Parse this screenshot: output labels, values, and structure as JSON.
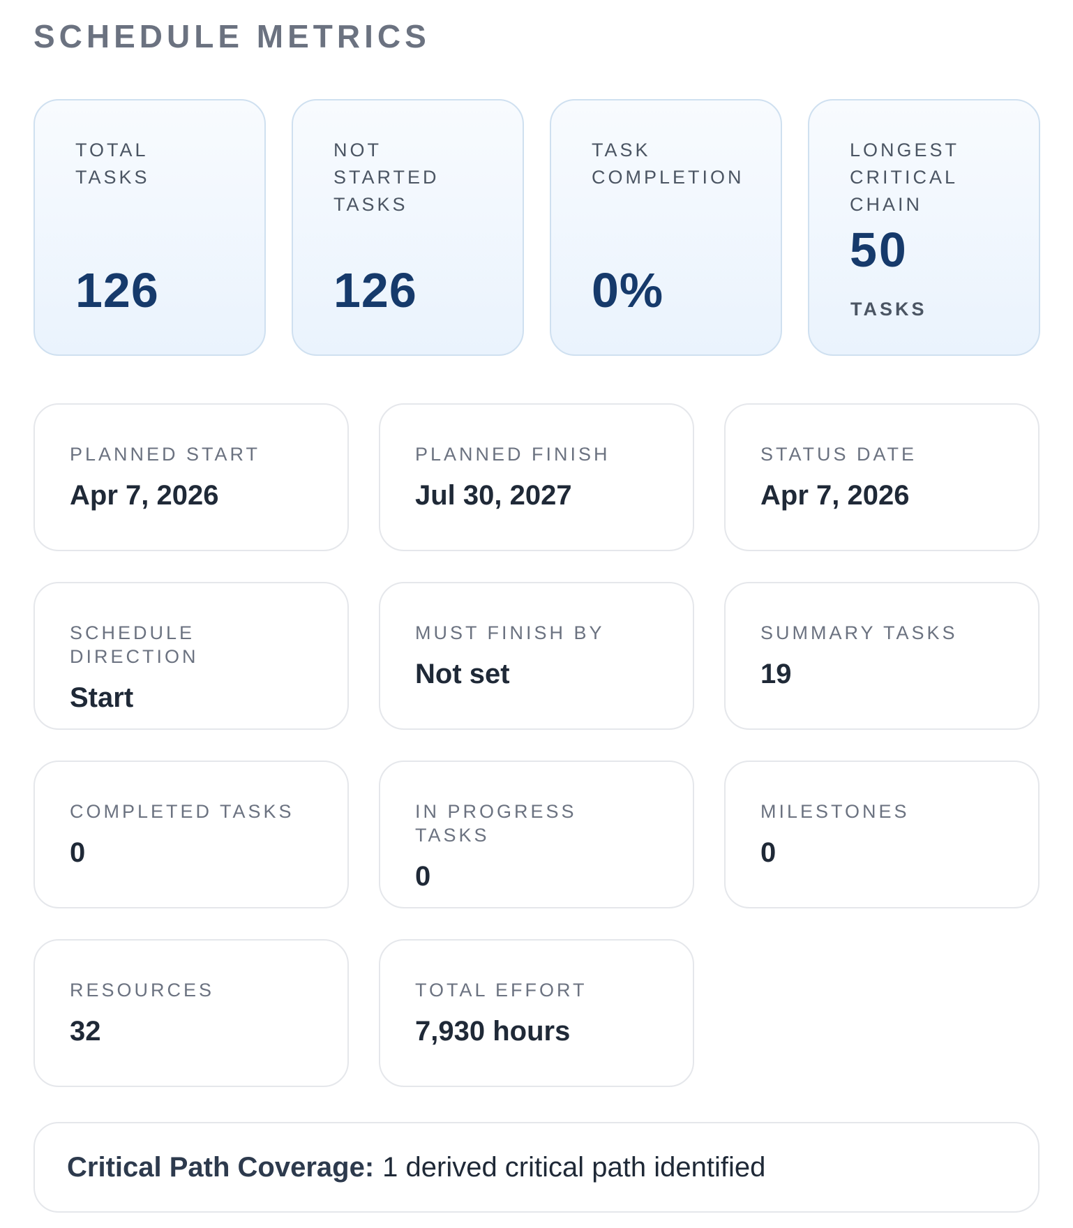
{
  "section_title": "SCHEDULE METRICS",
  "kpis": [
    {
      "label": "TOTAL TASKS",
      "value": "126"
    },
    {
      "label": "NOT STARTED TASKS",
      "value": "126"
    },
    {
      "label": "TASK COMPLETION",
      "value": "0%"
    },
    {
      "label": "LONGEST CRITICAL CHAIN",
      "value": "50",
      "unit": "TASKS"
    }
  ],
  "info_cards": [
    {
      "label": "PLANNED START",
      "value": "Apr 7, 2026"
    },
    {
      "label": "PLANNED FINISH",
      "value": "Jul 30, 2027"
    },
    {
      "label": "STATUS DATE",
      "value": "Apr 7, 2026"
    },
    {
      "label": "SCHEDULE DIRECTION",
      "value": "Start"
    },
    {
      "label": "MUST FINISH BY",
      "value": "Not set"
    },
    {
      "label": "SUMMARY TASKS",
      "value": "19"
    },
    {
      "label": "COMPLETED TASKS",
      "value": "0"
    },
    {
      "label": "IN PROGRESS TASKS",
      "value": "0"
    },
    {
      "label": "MILESTONES",
      "value": "0"
    },
    {
      "label": "RESOURCES",
      "value": "32"
    },
    {
      "label": "TOTAL EFFORT",
      "value": "7,930 hours"
    }
  ],
  "banner": {
    "label": "Critical Path Coverage:",
    "text": "1 derived critical path identified"
  },
  "colors": {
    "kpi_value": "#163a6b",
    "kpi_border": "#cfe0f0",
    "card_border": "#e5e7eb",
    "label": "#6b7280",
    "value": "#1f2937"
  }
}
